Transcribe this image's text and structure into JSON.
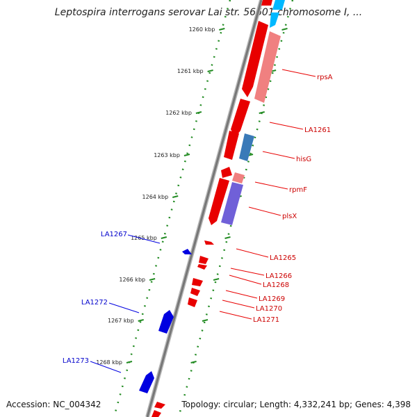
{
  "title": "Leptospira interrogans serovar Lai str. 56601 chromosome I, ...",
  "accession": "Accession: NC_004342",
  "stats": "Topology: circular; Length: 4,332,241 bp; Genes: 4,398",
  "colors": {
    "forward": "#e80000",
    "reverse": "#0000e0",
    "scale": "#228b22",
    "backbone": "#8a8a8a"
  },
  "scale_labels": [
    {
      "text": "1260 kbp"
    },
    {
      "text": "1261 kbp"
    },
    {
      "text": "1262 kbp"
    },
    {
      "text": "1263 kbp"
    },
    {
      "text": "1264 kbp"
    },
    {
      "text": "1265 kbp"
    },
    {
      "text": "1266 kbp"
    },
    {
      "text": "1267 kbp"
    },
    {
      "text": "1268 kbp"
    }
  ],
  "right_labels": [
    "rpsA",
    "LA1261",
    "hisG",
    "rpmF",
    "plsX",
    "LA1265",
    "LA1266",
    "LA1268",
    "LA1269",
    "LA1270",
    "LA1271"
  ],
  "left_labels": [
    "LA1267",
    "LA1272",
    "LA1273"
  ]
}
